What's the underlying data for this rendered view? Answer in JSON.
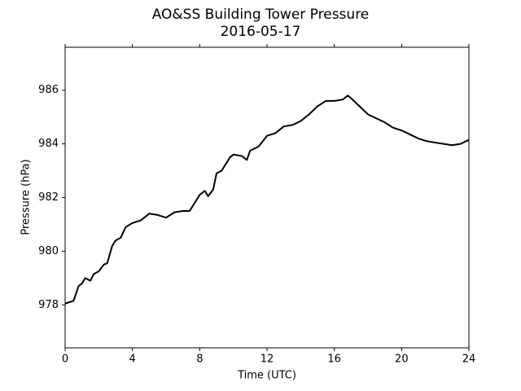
{
  "chart_data": {
    "type": "line",
    "title": "AO&SS Building Tower Pressure",
    "subtitle": "2016-05-17",
    "x_label": "Time (UTC)",
    "y_label": "Pressure (hPa)",
    "x": [
      0,
      0.5,
      0.8,
      1.0,
      1.2,
      1.5,
      1.7,
      2.0,
      2.3,
      2.5,
      2.8,
      3.0,
      3.3,
      3.6,
      4.0,
      4.5,
      4.8,
      5.0,
      5.5,
      6.0,
      6.5,
      7.0,
      7.4,
      7.6,
      8.0,
      8.3,
      8.5,
      8.8,
      9.0,
      9.3,
      9.5,
      9.8,
      10.0,
      10.5,
      10.8,
      11.0,
      11.5,
      12.0,
      12.5,
      13.0,
      13.5,
      14.0,
      14.5,
      15.0,
      15.5,
      16.0,
      16.5,
      16.8,
      17.0,
      17.5,
      18.0,
      18.5,
      19.0,
      19.5,
      20.0,
      20.5,
      21.0,
      21.5,
      22.0,
      22.5,
      23.0,
      23.5,
      24.0
    ],
    "series": [
      {
        "name": "Pressure",
        "color": "#000000",
        "values": [
          978.05,
          978.15,
          978.7,
          978.8,
          979.0,
          978.9,
          979.15,
          979.25,
          979.5,
          979.55,
          980.2,
          980.4,
          980.5,
          980.9,
          981.05,
          981.15,
          981.3,
          981.4,
          981.35,
          981.25,
          981.45,
          981.5,
          981.5,
          981.7,
          982.1,
          982.25,
          982.05,
          982.3,
          982.9,
          983.0,
          983.2,
          983.5,
          983.6,
          983.55,
          983.4,
          983.75,
          983.9,
          984.3,
          984.4,
          984.65,
          984.7,
          984.85,
          985.1,
          985.4,
          985.6,
          985.6,
          985.65,
          985.8,
          985.7,
          985.4,
          985.1,
          984.95,
          984.8,
          984.6,
          984.5,
          984.35,
          984.2,
          984.1,
          984.05,
          984.0,
          983.95,
          984.0,
          984.15
        ]
      }
    ],
    "xlim": [
      0,
      24
    ],
    "xticks": [
      0,
      4,
      8,
      12,
      16,
      20,
      24
    ],
    "ylim": [
      976.4,
      987.6
    ],
    "yticks": [
      978,
      980,
      982,
      984,
      986
    ],
    "grid": false
  }
}
